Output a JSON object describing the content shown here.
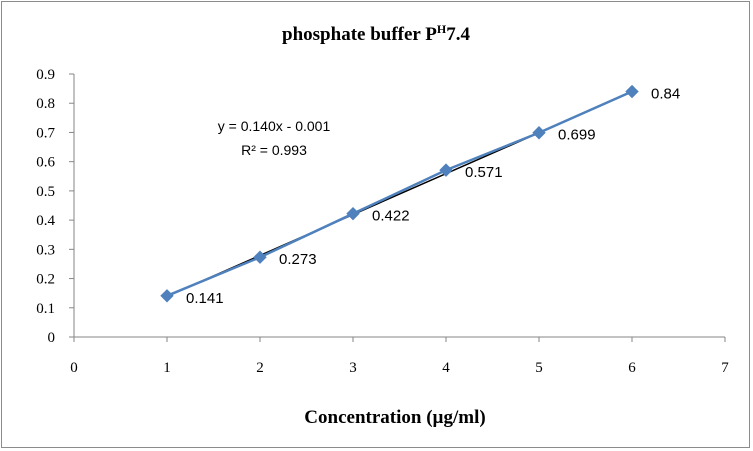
{
  "chart_data": {
    "type": "scatter",
    "title_main": "phosphate buffer P",
    "title_superscript": "H",
    "title_tail": "7.4",
    "xlabel": "Concentration (µg/ml)",
    "ylabel": "",
    "xlim": [
      0,
      7
    ],
    "ylim": [
      0,
      0.9
    ],
    "x_ticks": [
      "0",
      "1",
      "2",
      "3",
      "4",
      "5",
      "6",
      "7"
    ],
    "y_ticks": [
      "0",
      "0.1",
      "0.2",
      "0.3",
      "0.4",
      "0.5",
      "0.6",
      "0.7",
      "0.8",
      "0.9"
    ],
    "grid": false,
    "legend": "none",
    "series": [
      {
        "x": [
          1,
          2,
          3,
          4,
          5,
          6
        ],
        "y": [
          0.141,
          0.273,
          0.422,
          0.571,
          0.699,
          0.84
        ],
        "labels": [
          "0.141",
          "0.273",
          "0.422",
          "0.571",
          "0.699",
          "0.84"
        ],
        "color": "#4f81bd",
        "marker": "diamond"
      }
    ],
    "trendline": {
      "type": "linear",
      "slope": 0.14,
      "intercept": -0.001,
      "x_range": [
        1,
        6
      ],
      "color": "#000000",
      "equation_text": "y = 0.140x - 0.001",
      "r2_text": "R² = 0.993"
    }
  }
}
